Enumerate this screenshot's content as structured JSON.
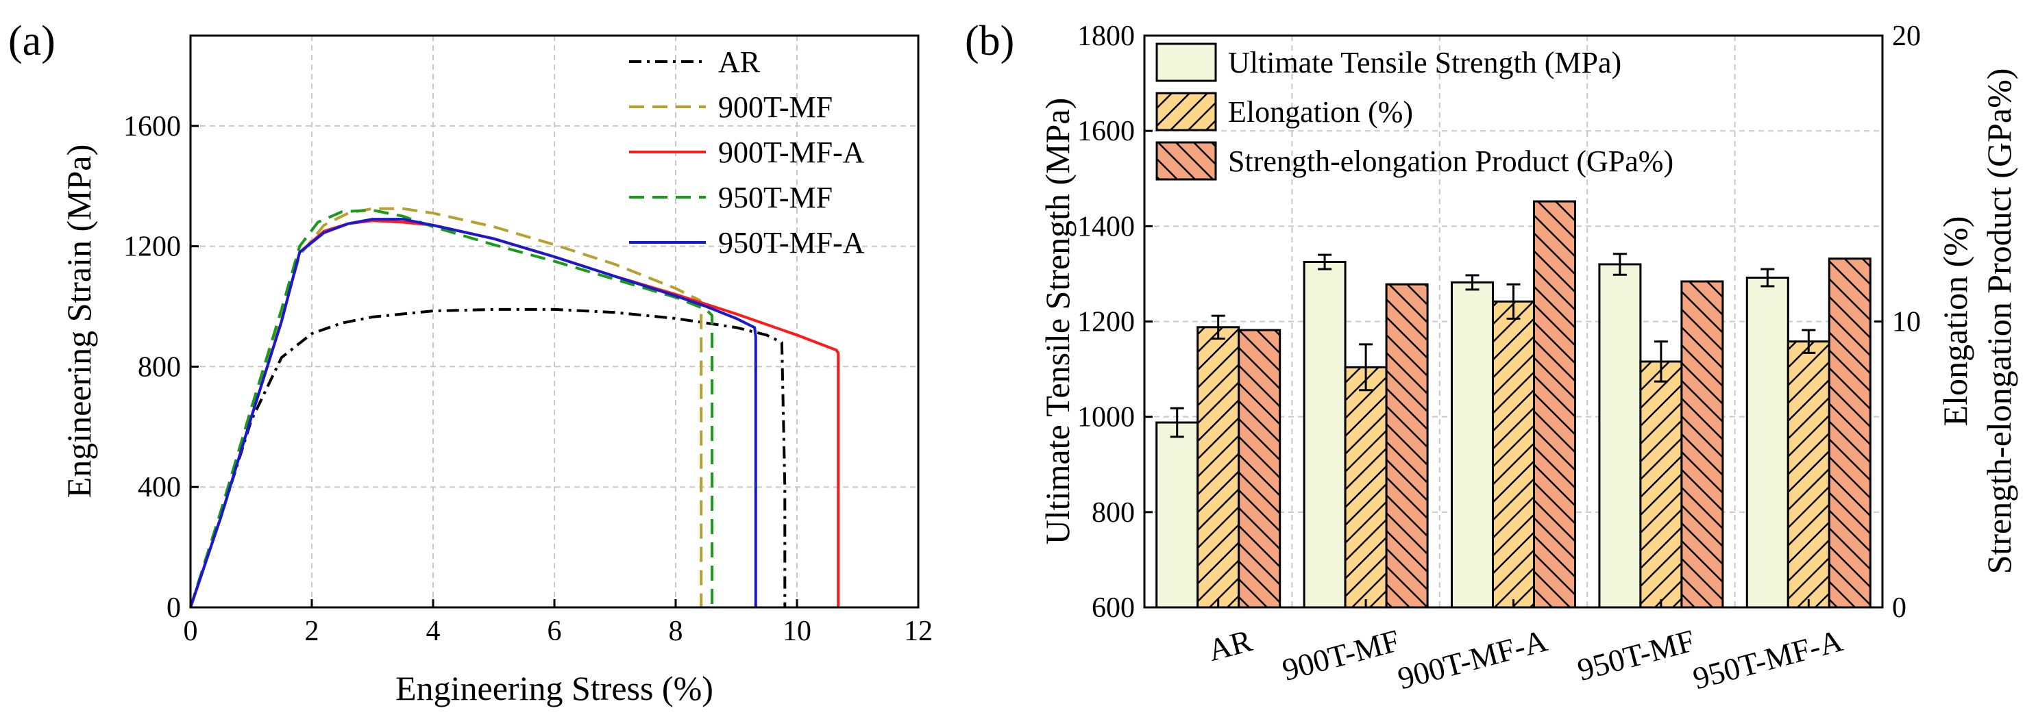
{
  "chart_data": [
    {
      "type": "line",
      "panel_label": "(a)",
      "xlabel": "Engineering Stress (%)",
      "ylabel": "Engineering Strain (MPa)",
      "xlim": [
        0,
        12
      ],
      "ylim": [
        0,
        1900
      ],
      "xticks": [
        0,
        2,
        4,
        6,
        8,
        10,
        12
      ],
      "yticks": [
        0,
        400,
        800,
        1200,
        1600
      ],
      "legend_position": "top-right",
      "series": [
        {
          "name": "AR",
          "color": "#000000",
          "dash": "dashdot",
          "x": [
            0,
            0.5,
            1.0,
            1.5,
            2.0,
            2.5,
            3.0,
            4.0,
            5.0,
            6.0,
            7.0,
            8.0,
            8.5,
            9.0,
            9.5,
            9.75,
            9.8,
            9.8
          ],
          "y": [
            0,
            300,
            620,
            830,
            910,
            945,
            965,
            985,
            990,
            990,
            980,
            960,
            945,
            930,
            905,
            880,
            400,
            0
          ]
        },
        {
          "name": "900T-MF",
          "color": "#b5a030",
          "dash": "dashed",
          "x": [
            0,
            0.5,
            1.0,
            1.5,
            1.8,
            2.2,
            2.6,
            3.0,
            3.5,
            4.0,
            5.0,
            6.0,
            7.0,
            8.0,
            8.4,
            8.42,
            8.42
          ],
          "y": [
            0,
            310,
            640,
            960,
            1170,
            1270,
            1310,
            1325,
            1325,
            1310,
            1265,
            1205,
            1140,
            1060,
            1020,
            980,
            0
          ]
        },
        {
          "name": "900T-MF-A",
          "color": "#ff1a1a",
          "dash": "solid",
          "x": [
            0,
            0.5,
            1.0,
            1.5,
            1.8,
            2.2,
            2.6,
            3.0,
            3.5,
            4.0,
            5.0,
            6.0,
            7.0,
            8.0,
            9.0,
            10.0,
            10.65,
            10.68,
            10.68
          ],
          "y": [
            0,
            300,
            630,
            950,
            1180,
            1250,
            1275,
            1285,
            1280,
            1270,
            1225,
            1165,
            1100,
            1040,
            975,
            905,
            855,
            845,
            0
          ]
        },
        {
          "name": "950T-MF",
          "color": "#1a9a1a",
          "dash": "dashed",
          "x": [
            0,
            0.5,
            1.0,
            1.5,
            1.8,
            2.1,
            2.5,
            3.0,
            3.5,
            4.0,
            5.0,
            6.0,
            7.0,
            8.0,
            8.5,
            8.6,
            8.6
          ],
          "y": [
            0,
            320,
            660,
            990,
            1200,
            1280,
            1315,
            1320,
            1300,
            1265,
            1205,
            1150,
            1090,
            1030,
            990,
            970,
            0
          ]
        },
        {
          "name": "950T-MF-A",
          "color": "#1a1acc",
          "dash": "solid",
          "x": [
            0,
            0.5,
            1.0,
            1.5,
            1.8,
            2.2,
            2.6,
            3.0,
            3.5,
            4.0,
            5.0,
            6.0,
            7.0,
            8.0,
            8.5,
            9.0,
            9.3,
            9.32,
            9.32
          ],
          "y": [
            0,
            300,
            630,
            950,
            1180,
            1245,
            1275,
            1290,
            1290,
            1270,
            1225,
            1165,
            1100,
            1035,
            1000,
            960,
            930,
            900,
            0
          ]
        }
      ]
    },
    {
      "type": "bar",
      "panel_label": "(b)",
      "categories": [
        "AR",
        "900T-MF",
        "900T-MF-A",
        "950T-MF",
        "950T-MF-A"
      ],
      "ylabel_left": "Ultimate Tensile Strength (MPa)",
      "ylabel_right_1": "Elongation (%)",
      "ylabel_right_2": "Strength-elongation Product (GPa%)",
      "ylim_left": [
        600,
        1800
      ],
      "yticks_left": [
        600,
        800,
        1000,
        1200,
        1400,
        1600,
        1800
      ],
      "ylim_right": [
        0,
        20
      ],
      "yticks_right": [
        0,
        10,
        20
      ],
      "legend_position": "top-left",
      "series": [
        {
          "name": "Ultimate Tensile Strength (MPa)",
          "axis": "left",
          "fill": "#f2f7dc",
          "hatch": "none",
          "values": [
            988,
            1325,
            1282,
            1320,
            1292
          ],
          "errors": [
            30,
            15,
            15,
            22,
            18
          ]
        },
        {
          "name": "Elongation (%)",
          "axis": "right",
          "fill": "#fcd68a",
          "hatch": "forward",
          "values": [
            9.8,
            8.4,
            10.7,
            8.6,
            9.3
          ],
          "errors": [
            0.4,
            0.8,
            0.6,
            0.7,
            0.4
          ]
        },
        {
          "name": "Strength-elongation Product (GPa%)",
          "axis": "right",
          "fill": "#f4a47e",
          "hatch": "backward",
          "values": [
            9.7,
            11.3,
            14.2,
            11.4,
            12.2
          ],
          "errors": [
            0,
            0,
            0,
            0,
            0
          ]
        }
      ]
    }
  ]
}
